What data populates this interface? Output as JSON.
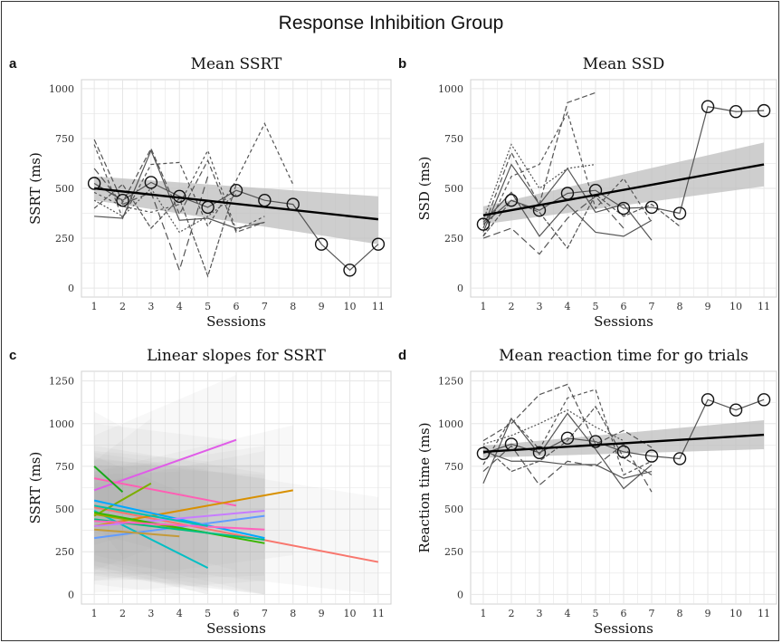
{
  "figure": {
    "title": "Response Inhibition Group",
    "letters": [
      "a",
      "b",
      "c",
      "d"
    ]
  },
  "colors": {
    "fit_line": "#000000",
    "ribbon": "#bdbdbd",
    "subject_lines": "#555555",
    "grid": "#e6e6e6"
  },
  "chart_data": [
    {
      "id": "a",
      "type": "line",
      "title": "Mean SSRT",
      "xlabel": "Sessions",
      "ylabel": "SSRT (ms)",
      "xlim": [
        1,
        11
      ],
      "ylim": [
        0,
        1000
      ],
      "xticks": [
        1,
        2,
        3,
        4,
        5,
        6,
        7,
        8,
        9,
        10,
        11
      ],
      "yticks": [
        0,
        250,
        500,
        750,
        1000
      ],
      "grid": true,
      "series": [
        {
          "x": [
            1,
            2,
            3,
            4,
            5,
            6,
            7,
            8,
            9,
            10,
            11
          ],
          "y": [
            525,
            440,
            530,
            460,
            405,
            490,
            440,
            420,
            220,
            90,
            220
          ],
          "role": "mean_points"
        },
        {
          "x": [
            1,
            11
          ],
          "y": [
            500,
            345
          ],
          "role": "linear_fit",
          "ribbon_low": [
            440,
            220
          ],
          "ribbon_high": [
            560,
            460
          ]
        }
      ],
      "subject_lines": [
        {
          "dash": "6,3",
          "x": [
            1,
            2,
            3,
            4,
            5,
            6,
            7
          ],
          "y": [
            745,
            430,
            700,
            370,
            640,
            280,
            330
          ]
        },
        {
          "dash": "4,3",
          "x": [
            1,
            2,
            3,
            4,
            5,
            6,
            7,
            8
          ],
          "y": [
            720,
            350,
            620,
            630,
            310,
            540,
            825,
            520
          ]
        },
        {
          "dash": "8,4",
          "x": [
            1,
            2,
            3,
            4,
            5
          ],
          "y": [
            600,
            420,
            480,
            90,
            560
          ]
        },
        {
          "dash": "2,2",
          "x": [
            1,
            2,
            3,
            4,
            5,
            6
          ],
          "y": [
            440,
            360,
            500,
            280,
            360,
            470
          ]
        },
        {
          "dash": "",
          "x": [
            1,
            2,
            3,
            4,
            5,
            6,
            7
          ],
          "y": [
            360,
            350,
            690,
            340,
            350,
            300,
            330
          ]
        },
        {
          "dash": "5,2",
          "x": [
            1,
            2,
            3,
            4,
            5,
            6
          ],
          "y": [
            400,
            520,
            300,
            450,
            60,
            520
          ]
        },
        {
          "dash": "3,3",
          "x": [
            1,
            2,
            3,
            4,
            5,
            6,
            7
          ],
          "y": [
            480,
            410,
            380,
            420,
            690,
            290,
            360
          ]
        },
        {
          "dash": "",
          "x": [
            1,
            2,
            3,
            4,
            5,
            6,
            7,
            8,
            9,
            10,
            11
          ],
          "y": [
            525,
            440,
            530,
            460,
            405,
            490,
            440,
            420,
            220,
            90,
            220
          ]
        }
      ]
    },
    {
      "id": "b",
      "type": "line",
      "title": "Mean SSD",
      "xlabel": "Sessions",
      "ylabel": "SSD (ms)",
      "xlim": [
        1,
        11
      ],
      "ylim": [
        0,
        1000
      ],
      "xticks": [
        1,
        2,
        3,
        4,
        5,
        6,
        7,
        8,
        9,
        10,
        11
      ],
      "yticks": [
        0,
        250,
        500,
        750,
        1000
      ],
      "grid": true,
      "series": [
        {
          "x": [
            1,
            2,
            3,
            4,
            5,
            6,
            7,
            8,
            9,
            10,
            11
          ],
          "y": [
            320,
            440,
            390,
            475,
            490,
            400,
            405,
            375,
            910,
            885,
            890
          ],
          "role": "mean_points"
        },
        {
          "x": [
            1,
            11
          ],
          "y": [
            365,
            620
          ],
          "role": "linear_fit",
          "ribbon_low": [
            320,
            510
          ],
          "ribbon_high": [
            410,
            730
          ]
        }
      ],
      "subject_lines": [
        {
          "dash": "6,3",
          "x": [
            1,
            2,
            3,
            4,
            5
          ],
          "y": [
            300,
            680,
            420,
            930,
            980
          ]
        },
        {
          "dash": "4,3",
          "x": [
            1,
            2,
            3,
            4,
            5,
            6,
            7
          ],
          "y": [
            260,
            560,
            620,
            880,
            400,
            550,
            330
          ]
        },
        {
          "dash": "2,2",
          "x": [
            1,
            2,
            3,
            4,
            5
          ],
          "y": [
            340,
            720,
            500,
            600,
            620
          ]
        },
        {
          "dash": "",
          "x": [
            1,
            2,
            3,
            4,
            5,
            6,
            7
          ],
          "y": [
            280,
            620,
            420,
            600,
            380,
            420,
            240
          ]
        },
        {
          "dash": "8,4",
          "x": [
            1,
            2,
            3,
            4,
            5,
            6
          ],
          "y": [
            250,
            300,
            170,
            350,
            460,
            300
          ]
        },
        {
          "dash": "",
          "x": [
            1,
            2,
            3,
            4,
            5,
            6,
            7
          ],
          "y": [
            330,
            480,
            260,
            420,
            280,
            260,
            340
          ]
        },
        {
          "dash": "5,2",
          "x": [
            1,
            2,
            3,
            4,
            5,
            6,
            7,
            8
          ],
          "y": [
            260,
            440,
            380,
            200,
            470,
            360,
            420,
            310
          ]
        },
        {
          "dash": "",
          "x": [
            1,
            2,
            3,
            4,
            5,
            6,
            7,
            8,
            9,
            10,
            11
          ],
          "y": [
            320,
            440,
            390,
            475,
            490,
            400,
            405,
            375,
            910,
            885,
            890
          ]
        }
      ]
    },
    {
      "id": "c",
      "type": "line",
      "title": "Linear slopes for SSRT",
      "xlabel": "Sessions",
      "ylabel": "SSRT (ms)",
      "xlim": [
        1,
        11
      ],
      "ylim": [
        0,
        1250
      ],
      "xticks": [
        1,
        2,
        3,
        4,
        5,
        6,
        7,
        8,
        9,
        10,
        11
      ],
      "yticks": [
        0,
        250,
        500,
        750,
        1000,
        1250
      ],
      "grid": true,
      "slopes": [
        {
          "color": "#e05ce8",
          "x": [
            1,
            6
          ],
          "y": [
            610,
            905
          ]
        },
        {
          "color": "#ff5fb4",
          "x": [
            1,
            6
          ],
          "y": [
            680,
            520
          ]
        },
        {
          "color": "#f8766d",
          "x": [
            1,
            11
          ],
          "y": [
            510,
            190
          ]
        },
        {
          "color": "#d89000",
          "x": [
            1,
            8
          ],
          "y": [
            400,
            610
          ]
        },
        {
          "color": "#1aa71a",
          "x": [
            1,
            2
          ],
          "y": [
            750,
            600
          ]
        },
        {
          "color": "#7cae00",
          "x": [
            1,
            3
          ],
          "y": [
            460,
            650
          ]
        },
        {
          "color": "#00bfc4",
          "x": [
            1,
            5
          ],
          "y": [
            490,
            155
          ]
        },
        {
          "color": "#00a9ff",
          "x": [
            1,
            7
          ],
          "y": [
            550,
            330
          ]
        },
        {
          "color": "#c77cff",
          "x": [
            1,
            7
          ],
          "y": [
            400,
            490
          ]
        },
        {
          "color": "#619cff",
          "x": [
            1,
            7
          ],
          "y": [
            330,
            460
          ]
        },
        {
          "color": "#a3a500",
          "x": [
            1,
            5
          ],
          "y": [
            470,
            360
          ]
        },
        {
          "color": "#c49a3a",
          "x": [
            1,
            4
          ],
          "y": [
            380,
            340
          ]
        },
        {
          "color": "#39b600",
          "x": [
            1,
            7
          ],
          "y": [
            480,
            300
          ]
        },
        {
          "color": "#00bf7d",
          "x": [
            1,
            7
          ],
          "y": [
            440,
            320
          ]
        },
        {
          "color": "#ff62bc",
          "x": [
            1,
            7
          ],
          "y": [
            430,
            380
          ]
        },
        {
          "color": "#00c0af",
          "x": [
            1,
            5
          ],
          "y": [
            520,
            400
          ]
        }
      ]
    },
    {
      "id": "d",
      "type": "line",
      "title": "Mean reaction time for go trials",
      "xlabel": "Sessions",
      "ylabel": "Reaction time (ms)",
      "xlim": [
        1,
        11
      ],
      "ylim": [
        0,
        1250
      ],
      "xticks": [
        1,
        2,
        3,
        4,
        5,
        6,
        7,
        8,
        9,
        10,
        11
      ],
      "yticks": [
        0,
        250,
        500,
        750,
        1000,
        1250
      ],
      "grid": true,
      "series": [
        {
          "x": [
            1,
            2,
            3,
            4,
            5,
            6,
            7,
            8,
            9,
            10,
            11
          ],
          "y": [
            825,
            880,
            830,
            915,
            895,
            835,
            810,
            795,
            1140,
            1080,
            1140
          ],
          "role": "mean_points"
        },
        {
          "x": [
            1,
            11
          ],
          "y": [
            835,
            935
          ],
          "role": "linear_fit",
          "ribbon_low": [
            800,
            850
          ],
          "ribbon_high": [
            870,
            1020
          ]
        }
      ],
      "subject_lines": [
        {
          "dash": "6,3",
          "x": [
            1,
            2,
            3,
            4,
            5,
            6,
            7
          ],
          "y": [
            900,
            1000,
            1170,
            1230,
            880,
            960,
            860
          ]
        },
        {
          "dash": "4,3",
          "x": [
            1,
            2,
            3,
            4,
            5,
            6,
            7
          ],
          "y": [
            760,
            1030,
            850,
            1150,
            1200,
            700,
            780
          ]
        },
        {
          "dash": "",
          "x": [
            1,
            2,
            3,
            4,
            5,
            6,
            7
          ],
          "y": [
            650,
            1030,
            820,
            1060,
            850,
            620,
            760
          ]
        },
        {
          "dash": "2,2",
          "x": [
            1,
            2,
            3,
            4,
            5,
            6
          ],
          "y": [
            880,
            930,
            1000,
            1080,
            980,
            900
          ]
        },
        {
          "dash": "8,4",
          "x": [
            1,
            2,
            3,
            4,
            5,
            6,
            7
          ],
          "y": [
            720,
            870,
            640,
            780,
            750,
            880,
            600
          ]
        },
        {
          "dash": "",
          "x": [
            1,
            2,
            3,
            4,
            5,
            6,
            7
          ],
          "y": [
            840,
            780,
            780,
            760,
            760,
            680,
            720
          ]
        },
        {
          "dash": "5,2",
          "x": [
            1,
            2,
            3,
            4,
            5,
            6,
            7
          ],
          "y": [
            870,
            720,
            780,
            900,
            1100,
            800,
            700
          ]
        },
        {
          "dash": "",
          "x": [
            1,
            2,
            3,
            4,
            5,
            6,
            7,
            8,
            9,
            10,
            11
          ],
          "y": [
            825,
            880,
            830,
            915,
            895,
            835,
            810,
            795,
            1140,
            1080,
            1140
          ]
        }
      ]
    }
  ]
}
